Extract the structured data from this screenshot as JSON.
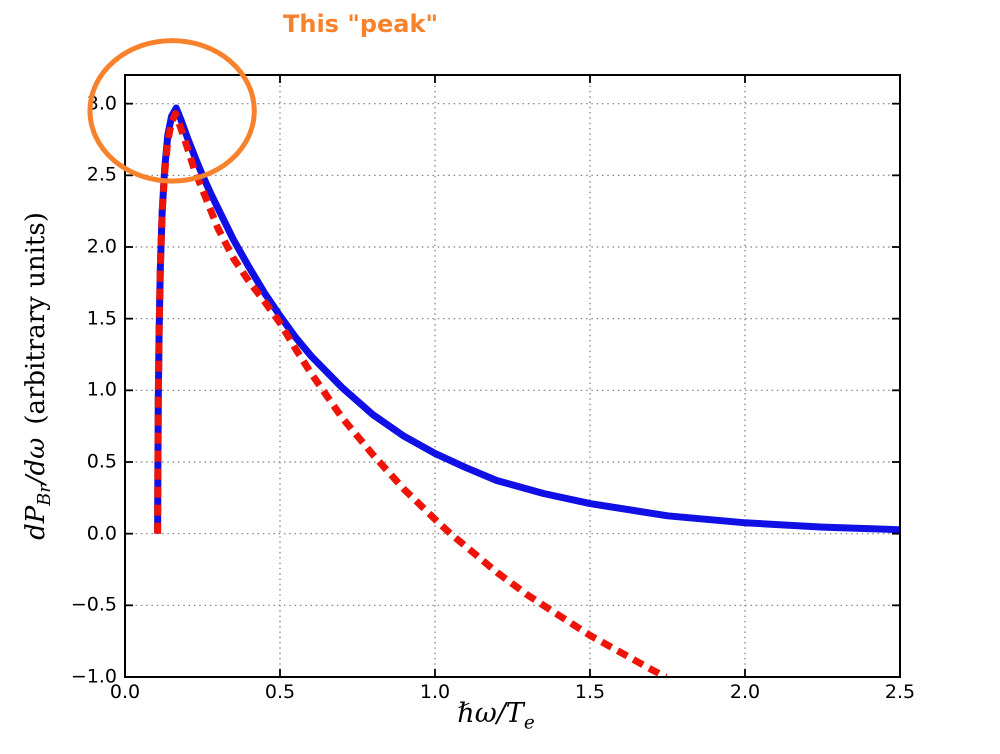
{
  "annotation": {
    "text": "This \"peak\""
  },
  "labels": {
    "y_main1": "dP",
    "y_sub1": "Br",
    "y_main2": "/dω",
    "y_units": " (arbitrary units)",
    "x_main": "ℏω/T",
    "x_sub": "e"
  },
  "colors": {
    "blue_curve": "#0f0fe6",
    "red_curve": "#ee1408",
    "orange_annotation": "#f8812c",
    "grid": "#7a7a7a",
    "frame": "#000000",
    "tick_text": "#000000"
  },
  "chart_data": {
    "type": "line",
    "title": "",
    "xlabel": "ℏω/T_e",
    "ylabel": "dP_Br/dω (arbitrary units)",
    "xlim": [
      0.0,
      2.5
    ],
    "ylim": [
      -1.0,
      3.2
    ],
    "x_ticks": [
      0.0,
      0.5,
      1.0,
      1.5,
      2.0,
      2.5
    ],
    "y_ticks": [
      -1.0,
      -0.5,
      0.0,
      0.5,
      1.0,
      1.5,
      2.0,
      2.5,
      3.0
    ],
    "grid": "dotted",
    "legend": "none",
    "series": [
      {
        "name": "blue-solid-curve",
        "style": "solid",
        "color_key": "blue_curve",
        "line_width": 7,
        "points": [
          [
            0.105,
            0.0
          ],
          [
            0.106,
            0.45
          ],
          [
            0.1075,
            0.95
          ],
          [
            0.11,
            1.4
          ],
          [
            0.114,
            1.85
          ],
          [
            0.12,
            2.25
          ],
          [
            0.128,
            2.55
          ],
          [
            0.138,
            2.78
          ],
          [
            0.15,
            2.91
          ],
          [
            0.165,
            2.97
          ],
          [
            0.18,
            2.89
          ],
          [
            0.2,
            2.77
          ],
          [
            0.225,
            2.63
          ],
          [
            0.25,
            2.5
          ],
          [
            0.275,
            2.38
          ],
          [
            0.3,
            2.27
          ],
          [
            0.35,
            2.05
          ],
          [
            0.4,
            1.86
          ],
          [
            0.45,
            1.68
          ],
          [
            0.5,
            1.52
          ],
          [
            0.55,
            1.37
          ],
          [
            0.6,
            1.24
          ],
          [
            0.7,
            1.02
          ],
          [
            0.8,
            0.83
          ],
          [
            0.9,
            0.68
          ],
          [
            1.0,
            0.56
          ],
          [
            1.1,
            0.46
          ],
          [
            1.2,
            0.37
          ],
          [
            1.35,
            0.28
          ],
          [
            1.5,
            0.21
          ],
          [
            1.75,
            0.125
          ],
          [
            2.0,
            0.076
          ],
          [
            2.25,
            0.046
          ],
          [
            2.5,
            0.028
          ]
        ]
      },
      {
        "name": "red-dashed-curve",
        "style": "dashed",
        "color_key": "red_curve",
        "line_width": 7,
        "dash": [
          11,
          7
        ],
        "points": [
          [
            0.105,
            0.0
          ],
          [
            0.106,
            0.45
          ],
          [
            0.1075,
            0.95
          ],
          [
            0.11,
            1.4
          ],
          [
            0.114,
            1.85
          ],
          [
            0.12,
            2.25
          ],
          [
            0.128,
            2.52
          ],
          [
            0.138,
            2.74
          ],
          [
            0.15,
            2.87
          ],
          [
            0.163,
            2.93
          ],
          [
            0.18,
            2.83
          ],
          [
            0.2,
            2.7
          ],
          [
            0.225,
            2.53
          ],
          [
            0.25,
            2.4
          ],
          [
            0.3,
            2.13
          ],
          [
            0.35,
            1.92
          ],
          [
            0.4,
            1.76
          ],
          [
            0.45,
            1.62
          ],
          [
            0.5,
            1.47
          ],
          [
            0.55,
            1.29
          ],
          [
            0.6,
            1.12
          ],
          [
            0.7,
            0.81
          ],
          [
            0.8,
            0.55
          ],
          [
            0.9,
            0.31
          ],
          [
            1.0,
            0.1
          ],
          [
            1.05,
            0.0
          ],
          [
            1.1,
            -0.09
          ],
          [
            1.2,
            -0.27
          ],
          [
            1.3,
            -0.43
          ],
          [
            1.4,
            -0.57
          ],
          [
            1.5,
            -0.71
          ],
          [
            1.6,
            -0.83
          ],
          [
            1.7,
            -0.95
          ],
          [
            1.745,
            -1.0
          ]
        ]
      }
    ],
    "annotations": [
      {
        "type": "ellipse",
        "cx": 0.152,
        "cy": 2.95,
        "rx": 0.265,
        "ry": 0.49,
        "stroke_width": 5,
        "color_key": "orange_annotation"
      }
    ]
  }
}
